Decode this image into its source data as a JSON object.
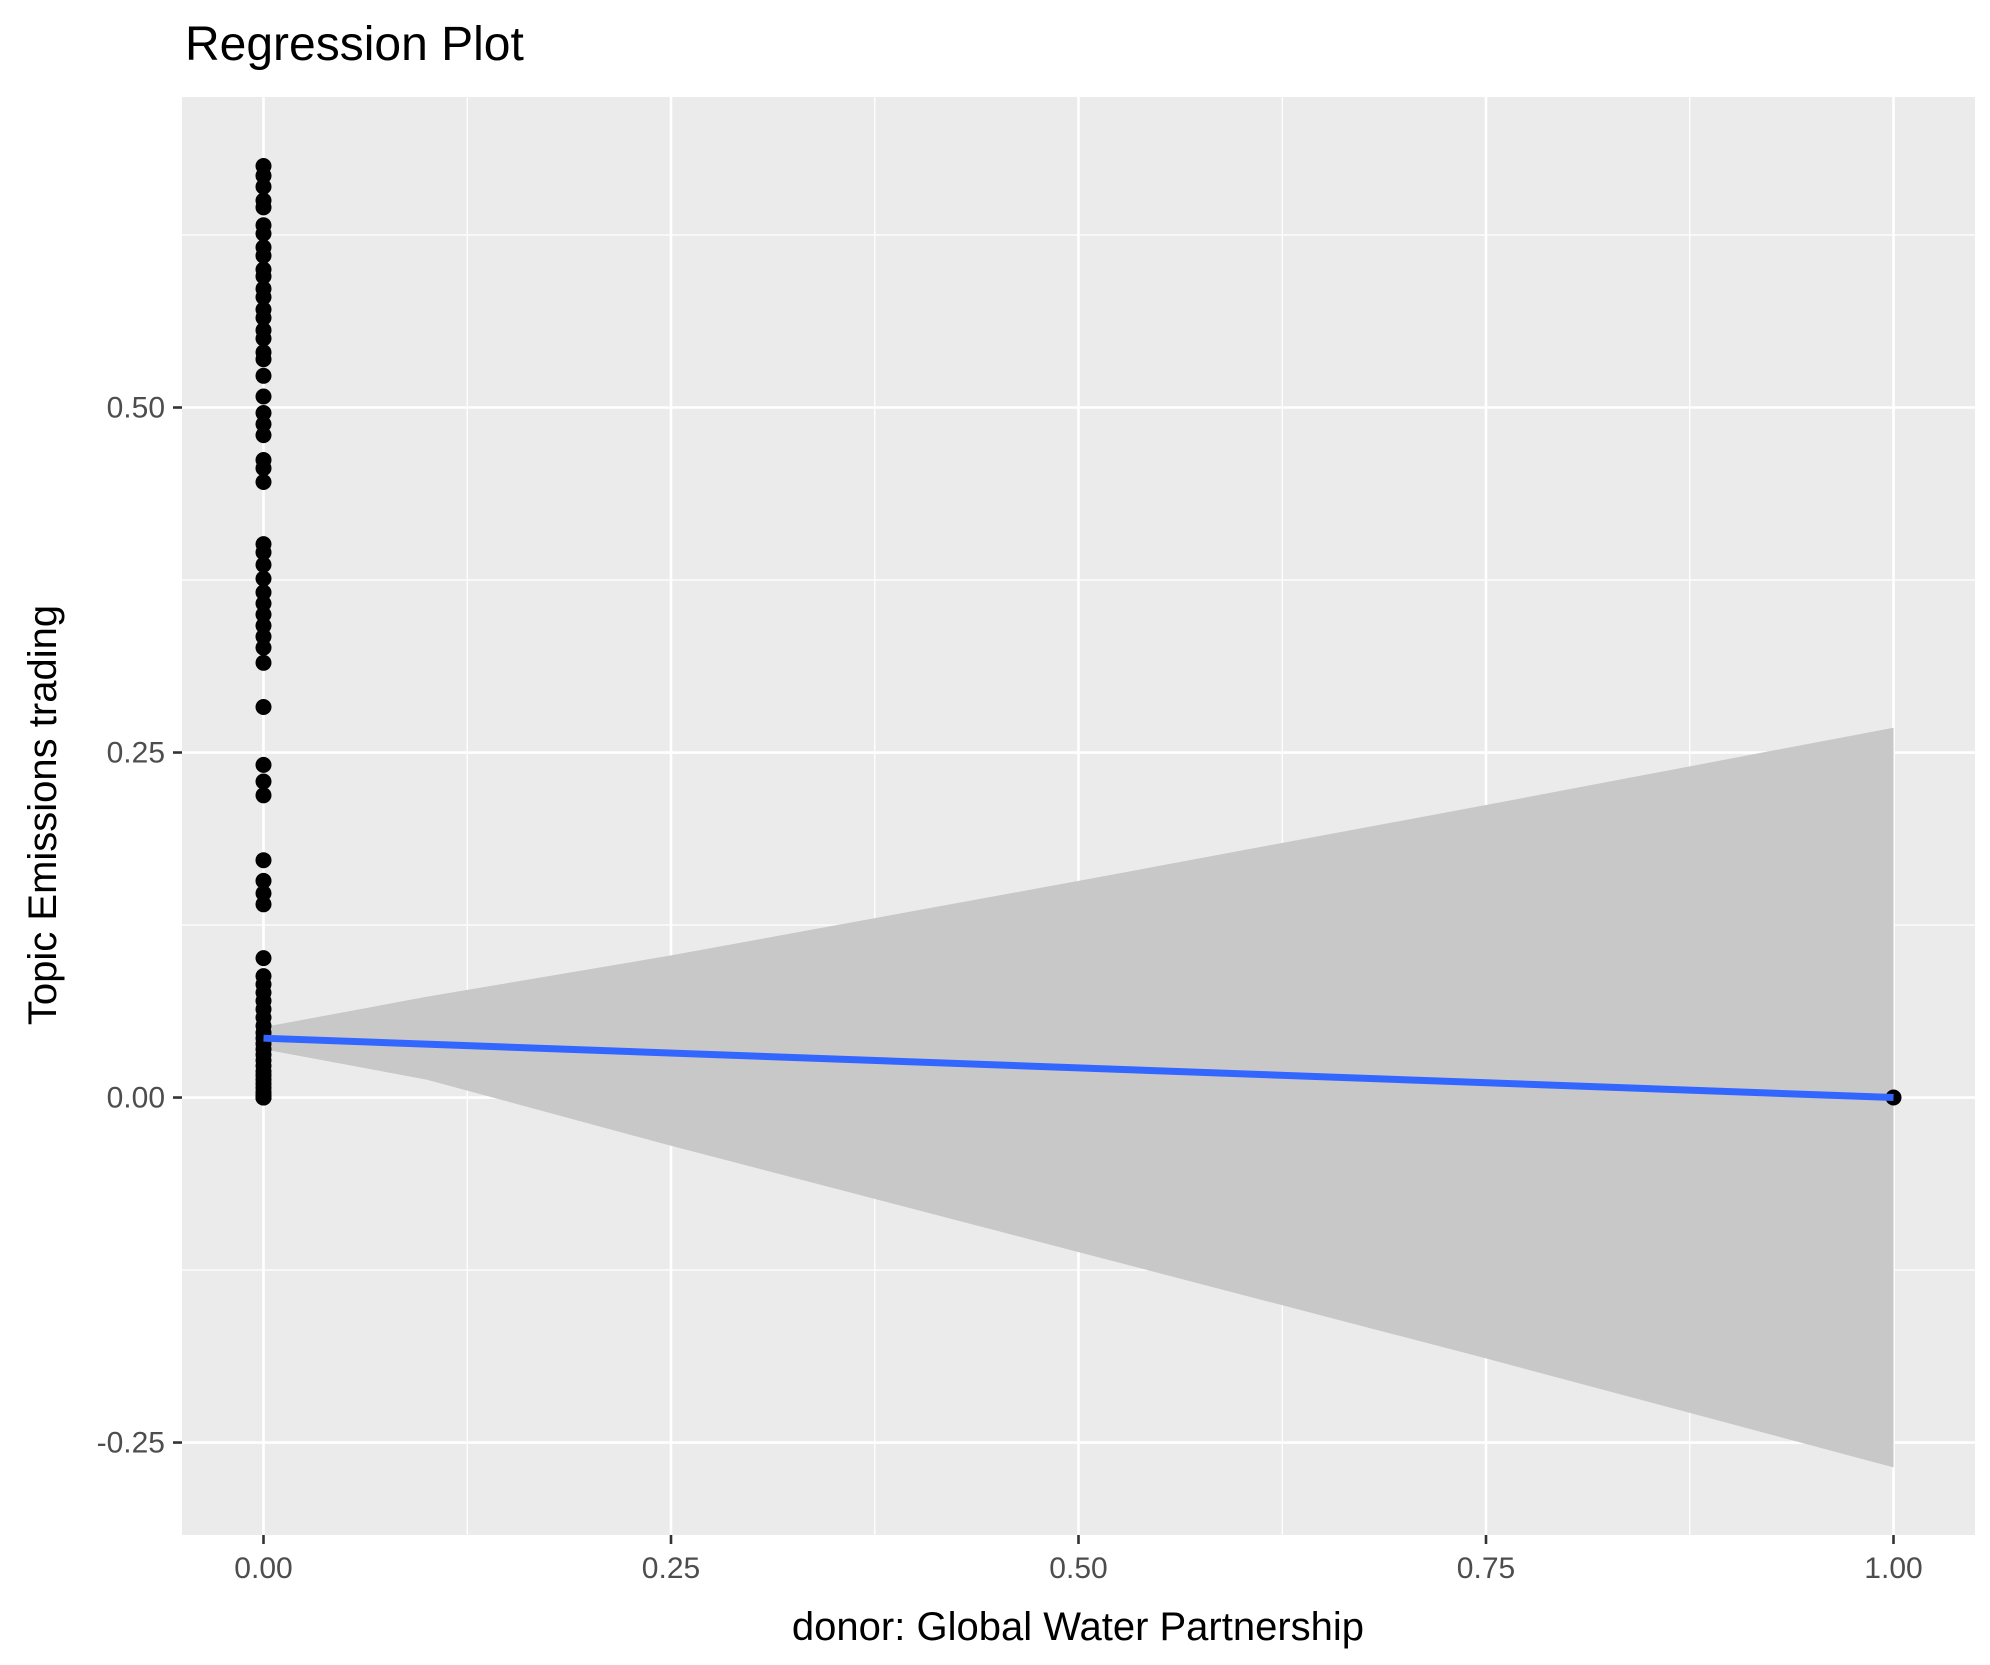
{
  "chart_data": {
    "type": "scatter",
    "title": "Regression Plot",
    "xlabel": "donor: Global Water Partnership",
    "ylabel": "Topic Emissions trading",
    "xlim": [
      -0.05,
      1.05
    ],
    "ylim": [
      -0.317,
      0.725
    ],
    "x_ticks": [
      0.0,
      0.25,
      0.5,
      0.75,
      1.0
    ],
    "x_tick_labels": [
      "0.00",
      "0.25",
      "0.50",
      "0.75",
      "1.00"
    ],
    "y_ticks": [
      -0.25,
      0.0,
      0.25,
      0.5
    ],
    "y_tick_labels": [
      "-0.25",
      "0.00",
      "0.25",
      "0.50"
    ],
    "grid": true,
    "colors": {
      "panel": "#ebebeb",
      "grid": "#ffffff",
      "points": "#000000",
      "fit_line": "#3366ff",
      "confidence_band": "#c8c8c8",
      "tick_label": "#4d4d4d"
    },
    "series": [
      {
        "type": "points",
        "x": [
          0,
          0,
          0,
          0,
          0,
          0,
          0,
          0,
          0,
          0,
          0,
          0,
          0,
          0,
          0,
          0,
          0,
          0,
          0,
          0,
          0,
          0,
          0,
          0,
          0,
          0,
          0,
          0,
          0,
          0,
          0,
          0,
          0,
          0,
          0,
          0,
          0,
          0,
          0,
          0,
          0,
          0,
          0,
          0,
          0,
          0,
          0,
          0,
          0,
          0,
          0,
          0,
          0,
          0,
          0,
          0,
          0,
          0,
          0,
          0,
          0,
          0,
          0,
          0,
          0,
          0,
          0,
          0,
          0,
          0,
          0,
          0,
          0,
          1
        ],
        "y": [
          0.675,
          0.668,
          0.66,
          0.65,
          0.645,
          0.632,
          0.626,
          0.616,
          0.61,
          0.6,
          0.595,
          0.586,
          0.58,
          0.571,
          0.565,
          0.556,
          0.55,
          0.54,
          0.535,
          0.523,
          0.508,
          0.496,
          0.488,
          0.48,
          0.462,
          0.456,
          0.446,
          0.401,
          0.395,
          0.386,
          0.376,
          0.366,
          0.358,
          0.35,
          0.342,
          0.334,
          0.326,
          0.315,
          0.283,
          0.241,
          0.229,
          0.219,
          0.172,
          0.157,
          0.148,
          0.14,
          0.101,
          0.088,
          0.082,
          0.076,
          0.07,
          0.064,
          0.058,
          0.052,
          0.047,
          0.043,
          0.039,
          0.035,
          0.031,
          0.027,
          0.023,
          0.019,
          0.016,
          0.013,
          0.01,
          0.007,
          0.004,
          0.002,
          0.0,
          0.0,
          0.0,
          0.0,
          0.0,
          0.0
        ]
      },
      {
        "type": "regression_line",
        "x": [
          0,
          1
        ],
        "y": [
          0.043,
          0.0
        ]
      },
      {
        "type": "confidence_band",
        "x": [
          0,
          0.1,
          0.25,
          0.5,
          0.75,
          1.0
        ],
        "lower": [
          0.035,
          0.013,
          -0.035,
          -0.112,
          -0.189,
          -0.268
        ],
        "upper": [
          0.051,
          0.073,
          0.103,
          0.157,
          0.212,
          0.268
        ]
      }
    ]
  }
}
